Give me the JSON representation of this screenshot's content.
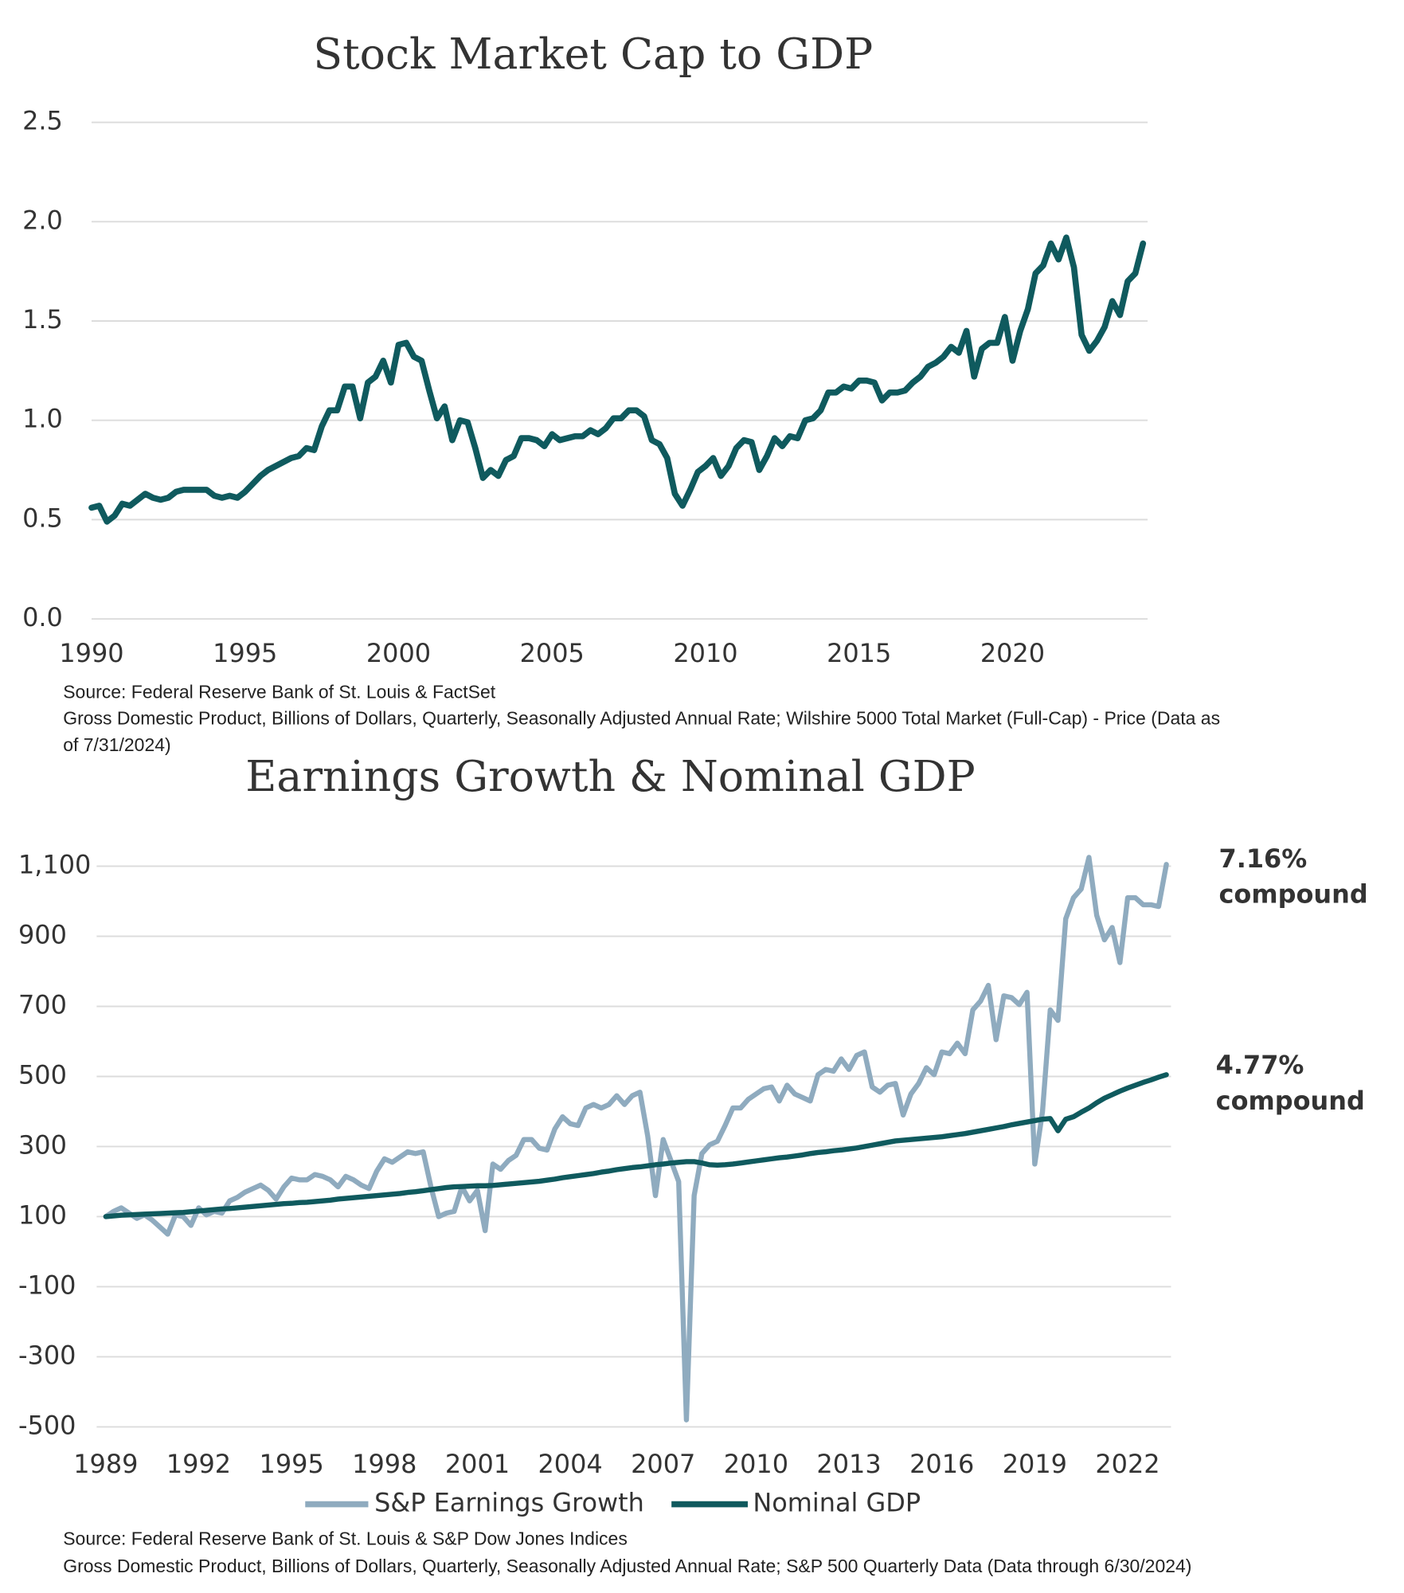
{
  "chart_data": [
    {
      "type": "line",
      "title": "Stock Market Cap to GDP",
      "xlim": [
        1990,
        2024.4
      ],
      "xticks": [
        1990,
        1995,
        2000,
        2005,
        2010,
        2015,
        2020
      ],
      "ylim": [
        0,
        2.5
      ],
      "yticks": [
        {
          "value": 0,
          "label": "0.0"
        },
        {
          "value": 0.5,
          "label": "0.5"
        },
        {
          "value": 1,
          "label": "1.0"
        },
        {
          "value": 1.5,
          "label": "1.5"
        },
        {
          "value": 2,
          "label": "2.0"
        },
        {
          "value": 2.5,
          "label": "2.5"
        }
      ],
      "grid": true,
      "x": [
        1990,
        1990.25,
        1990.5,
        1990.75,
        1991,
        1991.25,
        1991.5,
        1991.75,
        1992,
        1992.25,
        1992.5,
        1992.75,
        1993,
        1993.25,
        1993.5,
        1993.75,
        1994,
        1994.25,
        1994.5,
        1994.75,
        1995,
        1995.25,
        1995.5,
        1995.75,
        1996,
        1996.25,
        1996.5,
        1996.75,
        1997,
        1997.25,
        1997.5,
        1997.75,
        1998,
        1998.25,
        1998.5,
        1998.75,
        1999,
        1999.25,
        1999.5,
        1999.75,
        2000,
        2000.25,
        2000.5,
        2000.75,
        2001,
        2001.25,
        2001.5,
        2001.75,
        2002,
        2002.25,
        2002.5,
        2002.75,
        2003,
        2003.25,
        2003.5,
        2003.75,
        2004,
        2004.25,
        2004.5,
        2004.75,
        2005,
        2005.25,
        2005.5,
        2005.75,
        2006,
        2006.25,
        2006.5,
        2006.75,
        2007,
        2007.25,
        2007.5,
        2007.75,
        2008,
        2008.25,
        2008.5,
        2008.75,
        2009,
        2009.25,
        2009.5,
        2009.75,
        2010,
        2010.25,
        2010.5,
        2010.75,
        2011,
        2011.25,
        2011.5,
        2011.75,
        2012,
        2012.25,
        2012.5,
        2012.75,
        2013,
        2013.25,
        2013.5,
        2013.75,
        2014,
        2014.25,
        2014.5,
        2014.75,
        2015,
        2015.25,
        2015.5,
        2015.75,
        2016,
        2016.25,
        2016.5,
        2016.75,
        2017,
        2017.25,
        2017.5,
        2017.75,
        2018,
        2018.25,
        2018.5,
        2018.75,
        2019,
        2019.25,
        2019.5,
        2019.75,
        2020,
        2020.25,
        2020.5,
        2020.75,
        2021,
        2021.25,
        2021.5,
        2021.75,
        2022,
        2022.25,
        2022.5,
        2022.75,
        2023,
        2023.25,
        2023.5,
        2023.75,
        2024,
        2024.25
      ],
      "series": [
        {
          "color": "#0f5a5e",
          "values": [
            0.56,
            0.57,
            0.49,
            0.52,
            0.58,
            0.57,
            0.6,
            0.63,
            0.61,
            0.6,
            0.61,
            0.64,
            0.65,
            0.65,
            0.65,
            0.65,
            0.62,
            0.61,
            0.62,
            0.61,
            0.64,
            0.68,
            0.72,
            0.75,
            0.77,
            0.79,
            0.81,
            0.82,
            0.86,
            0.85,
            0.97,
            1.05,
            1.05,
            1.17,
            1.17,
            1.01,
            1.19,
            1.22,
            1.3,
            1.19,
            1.38,
            1.39,
            1.32,
            1.3,
            1.15,
            1.01,
            1.07,
            0.9,
            1.0,
            0.99,
            0.86,
            0.71,
            0.75,
            0.72,
            0.8,
            0.82,
            0.91,
            0.91,
            0.9,
            0.87,
            0.93,
            0.9,
            0.91,
            0.92,
            0.92,
            0.95,
            0.93,
            0.96,
            1.01,
            1.01,
            1.05,
            1.05,
            1.02,
            0.9,
            0.88,
            0.81,
            0.63,
            0.57,
            0.65,
            0.74,
            0.77,
            0.81,
            0.72,
            0.77,
            0.86,
            0.9,
            0.89,
            0.75,
            0.82,
            0.91,
            0.87,
            0.92,
            0.91,
            1.0,
            1.01,
            1.05,
            1.14,
            1.14,
            1.17,
            1.16,
            1.2,
            1.2,
            1.19,
            1.1,
            1.14,
            1.14,
            1.15,
            1.19,
            1.22,
            1.27,
            1.29,
            1.32,
            1.37,
            1.34,
            1.45,
            1.22,
            1.36,
            1.39,
            1.39,
            1.52,
            1.3,
            1.45,
            1.56,
            1.74,
            1.78,
            1.89,
            1.81,
            1.92,
            1.77,
            1.43,
            1.35,
            1.4,
            1.47,
            1.6,
            1.53,
            1.7,
            1.74,
            1.89
          ]
        }
      ],
      "source": [
        "Source: Federal Reserve Bank of St. Louis & FactSet",
        "Gross Domestic Product, Billions of Dollars, Quarterly, Seasonally Adjusted Annual Rate; Wilshire 5000 Total Market (Full-Cap) - Price (Data as",
        "of 7/31/2024)"
      ]
    },
    {
      "type": "line",
      "title": "Earnings Growth & Nominal GDP",
      "xlim": [
        1989,
        2023.4
      ],
      "xticks": [
        1989,
        1992,
        1995,
        1998,
        2001,
        2004,
        2007,
        2010,
        2013,
        2016,
        2019,
        2022
      ],
      "ylim": [
        -500,
        1100
      ],
      "yticks": [
        -500,
        -300,
        -100,
        100,
        300,
        500,
        700,
        900,
        {
          "value": 1100,
          "label": "1,100"
        }
      ],
      "grid": true,
      "legend": "bottom",
      "x": [
        1989,
        1989.25,
        1989.5,
        1989.75,
        1990,
        1990.25,
        1990.5,
        1990.75,
        1991,
        1991.25,
        1991.5,
        1991.75,
        1992,
        1992.25,
        1992.5,
        1992.75,
        1993,
        1993.25,
        1993.5,
        1993.75,
        1994,
        1994.25,
        1994.5,
        1994.75,
        1995,
        1995.25,
        1995.5,
        1995.75,
        1996,
        1996.25,
        1996.5,
        1996.75,
        1997,
        1997.25,
        1997.5,
        1997.75,
        1998,
        1998.25,
        1998.5,
        1998.75,
        1999,
        1999.25,
        1999.5,
        1999.75,
        2000,
        2000.25,
        2000.5,
        2000.75,
        2001,
        2001.25,
        2001.5,
        2001.75,
        2002,
        2002.25,
        2002.5,
        2002.75,
        2003,
        2003.25,
        2003.5,
        2003.75,
        2004,
        2004.25,
        2004.5,
        2004.75,
        2005,
        2005.25,
        2005.5,
        2005.75,
        2006,
        2006.25,
        2006.5,
        2006.75,
        2007,
        2007.25,
        2007.5,
        2007.75,
        2008,
        2008.25,
        2008.5,
        2008.75,
        2009,
        2009.25,
        2009.5,
        2009.75,
        2010,
        2010.25,
        2010.5,
        2010.75,
        2011,
        2011.25,
        2011.5,
        2011.75,
        2012,
        2012.25,
        2012.5,
        2012.75,
        2013,
        2013.25,
        2013.5,
        2013.75,
        2014,
        2014.25,
        2014.5,
        2014.75,
        2015,
        2015.25,
        2015.5,
        2015.75,
        2016,
        2016.25,
        2016.5,
        2016.75,
        2017,
        2017.25,
        2017.5,
        2017.75,
        2018,
        2018.25,
        2018.5,
        2018.75,
        2019,
        2019.25,
        2019.5,
        2019.75,
        2020,
        2020.25,
        2020.5,
        2020.75,
        2021,
        2021.25,
        2021.5,
        2021.75,
        2022,
        2022.25,
        2022.5,
        2022.75,
        2023,
        2023.25
      ],
      "series": [
        {
          "name": "S&P Earnings Growth",
          "color": "#8fabbf",
          "values": [
            100,
            115,
            125,
            110,
            95,
            105,
            90,
            70,
            50,
            105,
            100,
            75,
            125,
            105,
            115,
            110,
            145,
            155,
            170,
            180,
            190,
            175,
            150,
            185,
            210,
            205,
            205,
            220,
            215,
            205,
            185,
            215,
            205,
            190,
            180,
            230,
            265,
            255,
            270,
            285,
            280,
            285,
            185,
            100,
            110,
            115,
            185,
            145,
            175,
            60,
            250,
            235,
            260,
            275,
            320,
            320,
            295,
            290,
            350,
            385,
            365,
            360,
            410,
            420,
            410,
            420,
            445,
            420,
            445,
            455,
            330,
            160,
            320,
            260,
            200,
            -480,
            160,
            280,
            305,
            315,
            360,
            410,
            410,
            435,
            450,
            465,
            470,
            430,
            475,
            450,
            440,
            430,
            505,
            520,
            515,
            550,
            520,
            560,
            570,
            470,
            455,
            475,
            480,
            390,
            450,
            480,
            525,
            505,
            570,
            565,
            595,
            565,
            690,
            715,
            760,
            605,
            730,
            725,
            705,
            740,
            250,
            400,
            690,
            660,
            950,
            1010,
            1035,
            1125,
            960,
            890,
            925,
            825,
            1010,
            1010,
            990,
            990,
            985,
            1105
          ]
        },
        {
          "name": "Nominal GDP",
          "color": "#0f5a5e",
          "values": [
            100,
            102,
            104,
            105,
            106,
            107,
            108,
            109,
            110,
            111,
            112,
            114,
            116,
            118,
            120,
            122,
            123,
            125,
            127,
            129,
            131,
            133,
            135,
            137,
            138,
            140,
            141,
            143,
            145,
            147,
            150,
            152,
            154,
            156,
            158,
            160,
            162,
            164,
            166,
            169,
            171,
            174,
            177,
            180,
            183,
            185,
            186,
            187,
            188,
            188,
            189,
            191,
            193,
            195,
            197,
            199,
            201,
            204,
            207,
            211,
            214,
            217,
            220,
            223,
            227,
            230,
            234,
            237,
            240,
            242,
            245,
            248,
            250,
            253,
            255,
            257,
            257,
            253,
            248,
            247,
            248,
            250,
            253,
            256,
            259,
            262,
            265,
            268,
            270,
            273,
            276,
            280,
            283,
            285,
            288,
            290,
            293,
            296,
            300,
            304,
            308,
            312,
            316,
            318,
            320,
            322,
            324,
            326,
            328,
            331,
            334,
            337,
            341,
            345,
            349,
            353,
            357,
            362,
            366,
            370,
            374,
            378,
            380,
            345,
            378,
            385,
            398,
            410,
            425,
            438,
            448,
            458,
            467,
            475,
            483,
            490,
            498,
            505
          ]
        }
      ],
      "annotations": [
        [
          "7.16%",
          "compound"
        ],
        [
          "4.77%",
          "compound"
        ]
      ],
      "source": [
        "Source: Federal Reserve Bank of St. Louis & S&P Dow Jones Indices",
        "Gross Domestic Product, Billions of Dollars, Quarterly, Seasonally Adjusted Annual Rate; S&P 500 Quarterly Data (Data through 6/30/2024)"
      ]
    }
  ]
}
